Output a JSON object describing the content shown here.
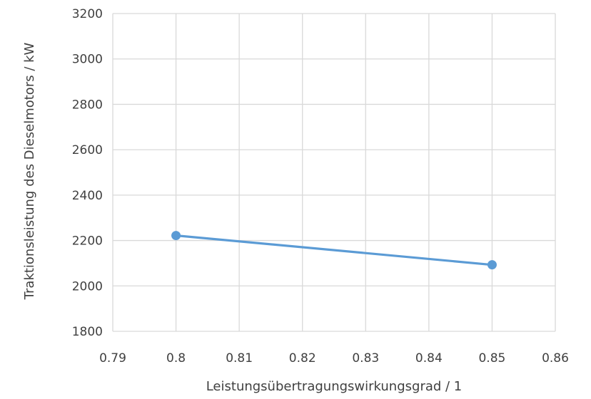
{
  "chart_data": {
    "type": "line",
    "title": "",
    "xlabel": "Leistungsübertragungswirkungsgrad / 1",
    "ylabel": "Traktionsleistung des Dieselmotors / kW",
    "xlim": [
      0.79,
      0.86
    ],
    "ylim": [
      1800,
      3200
    ],
    "x_ticks": [
      "0.79",
      "0.8",
      "0.81",
      "0.82",
      "0.83",
      "0.84",
      "0.85",
      "0.86"
    ],
    "y_ticks": [
      "1800",
      "2000",
      "2200",
      "2400",
      "2600",
      "2800",
      "3000",
      "3200"
    ],
    "grid": true,
    "legend": "none",
    "series": [
      {
        "color": "#5B9BD5",
        "points": [
          {
            "x": 0.8,
            "y": 2222
          },
          {
            "x": 0.85,
            "y": 2093
          }
        ]
      }
    ]
  }
}
